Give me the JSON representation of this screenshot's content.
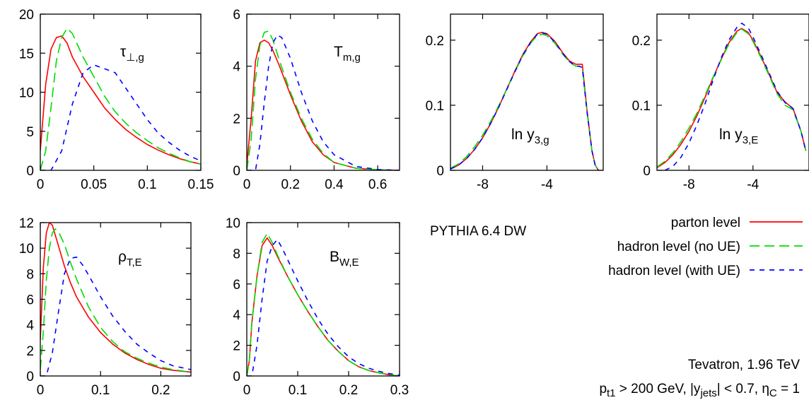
{
  "styles": [
    {
      "color": "#ff0000",
      "dash": ""
    },
    {
      "color": "#00dd00",
      "dash": "14,7"
    },
    {
      "color": "#0000ff",
      "dash": "7,7"
    }
  ],
  "legend": {
    "entries": [
      "parton level",
      "hadron level (no UE)",
      "hadron level (with UE)"
    ]
  },
  "annotations": {
    "generator": "PYTHIA 6.4 DW",
    "collider": "Tevatron, 1.96 TeV",
    "cuts": {
      "p": "p",
      "p_sub": "t1",
      "mid": " > 200 GeV, |y",
      "y_sub": "jets",
      "mid2": "| < 0.7, η",
      "eta_sub": "C",
      "end": " = 1"
    }
  },
  "chart_data": [
    {
      "type": "line",
      "label": {
        "main": "τ",
        "sub": "⊥,g"
      },
      "xlim": [
        0,
        0.15
      ],
      "ylim": [
        0,
        20
      ],
      "xticks": [
        0,
        0.05,
        0.1,
        0.15
      ],
      "xtick_labels": [
        "0",
        "0.05",
        "0.1",
        "0.15"
      ],
      "yticks": [
        0,
        5,
        10,
        15,
        20
      ],
      "ytick_labels": [
        "0",
        "5",
        "10",
        "15",
        "20"
      ],
      "series": [
        {
          "x": [
            0,
            0.005,
            0.01,
            0.015,
            0.02,
            0.025,
            0.03,
            0.04,
            0.05,
            0.06,
            0.07,
            0.08,
            0.09,
            0.1,
            0.11,
            0.12,
            0.13,
            0.14,
            0.15
          ],
          "y": [
            2.5,
            11,
            15.5,
            17,
            17.2,
            16.3,
            14.5,
            12.0,
            10.0,
            8.0,
            6.5,
            5.2,
            4.2,
            3.3,
            2.6,
            2.0,
            1.5,
            1.1,
            0.8
          ]
        },
        {
          "x": [
            0,
            0.005,
            0.01,
            0.015,
            0.02,
            0.025,
            0.03,
            0.04,
            0.05,
            0.06,
            0.07,
            0.08,
            0.09,
            0.1,
            0.11,
            0.12,
            0.13,
            0.14,
            0.15
          ],
          "y": [
            0,
            2.5,
            8,
            14,
            17,
            18.2,
            17.5,
            14.5,
            12.0,
            9.5,
            7.5,
            6.0,
            4.8,
            3.8,
            2.9,
            2.2,
            1.6,
            1.1,
            0.8
          ]
        },
        {
          "x": [
            0,
            0.01,
            0.02,
            0.025,
            0.03,
            0.04,
            0.05,
            0.06,
            0.07,
            0.08,
            0.09,
            0.1,
            0.11,
            0.12,
            0.13,
            0.14,
            0.15
          ],
          "y": [
            0,
            0,
            2.5,
            5.5,
            8.5,
            12.5,
            13.5,
            13.0,
            12.5,
            10.5,
            8.5,
            6.5,
            4.8,
            3.6,
            2.6,
            1.8,
            1.2
          ]
        }
      ]
    },
    {
      "type": "line",
      "label": {
        "main": "T",
        "sub": "m,g"
      },
      "xlim": [
        0,
        0.7
      ],
      "ylim": [
        0,
        6
      ],
      "xticks": [
        0,
        0.2,
        0.4,
        0.6
      ],
      "xtick_labels": [
        "0",
        "0.2",
        "0.4",
        "0.6"
      ],
      "yticks": [
        0,
        2,
        4,
        6
      ],
      "ytick_labels": [
        "0",
        "2",
        "4",
        "6"
      ],
      "series": [
        {
          "x": [
            0,
            0.02,
            0.04,
            0.06,
            0.08,
            0.1,
            0.12,
            0.15,
            0.2,
            0.25,
            0.3,
            0.35,
            0.4,
            0.5,
            0.6,
            0.7
          ],
          "y": [
            0.2,
            2.0,
            4.2,
            4.9,
            5.0,
            4.9,
            4.6,
            4.0,
            2.9,
            1.9,
            1.1,
            0.6,
            0.3,
            0.08,
            0.02,
            0
          ]
        },
        {
          "x": [
            0,
            0.02,
            0.04,
            0.06,
            0.08,
            0.1,
            0.12,
            0.15,
            0.2,
            0.25,
            0.3,
            0.35,
            0.4,
            0.5,
            0.6,
            0.7
          ],
          "y": [
            0,
            1.2,
            3.5,
            4.8,
            5.3,
            5.35,
            5.0,
            4.2,
            3.0,
            2.0,
            1.2,
            0.65,
            0.3,
            0.08,
            0.02,
            0
          ]
        },
        {
          "x": [
            0,
            0.04,
            0.06,
            0.08,
            0.1,
            0.12,
            0.14,
            0.16,
            0.2,
            0.25,
            0.3,
            0.35,
            0.4,
            0.5,
            0.6,
            0.7
          ],
          "y": [
            0,
            0,
            1.0,
            2.6,
            4.0,
            4.9,
            5.2,
            5.1,
            4.3,
            3.0,
            1.9,
            1.1,
            0.6,
            0.15,
            0.03,
            0
          ]
        }
      ]
    },
    {
      "type": "line",
      "label": {
        "main": "ln y",
        "sub": "3,g"
      },
      "xlim": [
        -10,
        -0.5
      ],
      "ylim": [
        0,
        0.24
      ],
      "xticks": [
        -8,
        -4
      ],
      "xtick_labels": [
        "-8",
        "-4"
      ],
      "yticks": [
        0,
        0.1,
        0.2
      ],
      "ytick_labels": [
        "0",
        "0.1",
        "0.2"
      ],
      "series": [
        {
          "x": [
            -10,
            -9.5,
            -9,
            -8.5,
            -8,
            -7.5,
            -7,
            -6.5,
            -6,
            -5.5,
            -5,
            -4.6,
            -4.3,
            -4,
            -3.5,
            -3,
            -2.6,
            -2.2,
            -2.0,
            -1.8,
            -1.5,
            -1.2,
            -1.0,
            -0.8
          ],
          "y": [
            0.002,
            0.008,
            0.018,
            0.032,
            0.05,
            0.072,
            0.097,
            0.125,
            0.152,
            0.178,
            0.198,
            0.21,
            0.212,
            0.21,
            0.198,
            0.18,
            0.168,
            0.163,
            0.163,
            0.163,
            0.09,
            0.03,
            0.008,
            0
          ]
        },
        {
          "x": [
            -10,
            -9.5,
            -9,
            -8.5,
            -8,
            -7.5,
            -7,
            -6.5,
            -6,
            -5.5,
            -5,
            -4.6,
            -4.3,
            -4,
            -3.5,
            -3,
            -2.6,
            -2.2,
            -2.0,
            -1.8,
            -1.5,
            -1.2,
            -1.0,
            -0.8
          ],
          "y": [
            0.003,
            0.01,
            0.021,
            0.036,
            0.054,
            0.075,
            0.099,
            0.125,
            0.151,
            0.176,
            0.196,
            0.207,
            0.209,
            0.207,
            0.195,
            0.178,
            0.166,
            0.16,
            0.16,
            0.158,
            0.088,
            0.03,
            0.008,
            0
          ]
        },
        {
          "x": [
            -10,
            -9.5,
            -9,
            -8.5,
            -8,
            -7.5,
            -7,
            -6.5,
            -6,
            -5.5,
            -5,
            -4.6,
            -4.3,
            -4,
            -3.5,
            -3,
            -2.6,
            -2.2,
            -2.0,
            -1.8,
            -1.5,
            -1.2,
            -1.0,
            -0.8
          ],
          "y": [
            0.002,
            0.008,
            0.018,
            0.032,
            0.05,
            0.072,
            0.097,
            0.124,
            0.151,
            0.177,
            0.197,
            0.209,
            0.211,
            0.209,
            0.197,
            0.179,
            0.167,
            0.16,
            0.16,
            0.158,
            0.088,
            0.03,
            0.008,
            0
          ]
        }
      ]
    },
    {
      "type": "line",
      "label": {
        "main": "ln y",
        "sub": "3,E"
      },
      "xlim": [
        -10,
        -0.5
      ],
      "ylim": [
        0,
        0.24
      ],
      "xticks": [
        -8,
        -4
      ],
      "xtick_labels": [
        "-8",
        "-4"
      ],
      "yticks": [
        0,
        0.1,
        0.2
      ],
      "ytick_labels": [
        "0",
        "0.1",
        "0.2"
      ],
      "series": [
        {
          "x": [
            -10,
            -9.5,
            -9,
            -8.5,
            -8,
            -7.5,
            -7,
            -6.5,
            -6,
            -5.5,
            -5,
            -4.7,
            -4.3,
            -4,
            -3.5,
            -3,
            -2.5,
            -2.0,
            -1.5,
            -1.0,
            -0.7
          ],
          "y": [
            0.004,
            0.012,
            0.024,
            0.04,
            0.06,
            0.084,
            0.112,
            0.142,
            0.17,
            0.196,
            0.214,
            0.218,
            0.212,
            0.2,
            0.175,
            0.148,
            0.12,
            0.105,
            0.095,
            0.06,
            0.03
          ]
        },
        {
          "x": [
            -10,
            -9.5,
            -9,
            -8.5,
            -8,
            -7.5,
            -7,
            -6.5,
            -6,
            -5.5,
            -5,
            -4.7,
            -4.3,
            -4,
            -3.5,
            -3,
            -2.5,
            -2.0,
            -1.5,
            -1.0,
            -0.7
          ],
          "y": [
            0.005,
            0.014,
            0.027,
            0.044,
            0.065,
            0.088,
            0.115,
            0.143,
            0.169,
            0.194,
            0.212,
            0.217,
            0.21,
            0.198,
            0.173,
            0.146,
            0.118,
            0.1,
            0.093,
            0.06,
            0.03
          ]
        },
        {
          "x": [
            -9.5,
            -9,
            -8.5,
            -8,
            -7.5,
            -7,
            -6.5,
            -6,
            -5.5,
            -5,
            -4.7,
            -4.3,
            -4,
            -3.5,
            -3,
            -2.5,
            -2.0,
            -1.5,
            -1.0,
            -0.7
          ],
          "y": [
            0.0,
            0.006,
            0.02,
            0.042,
            0.07,
            0.102,
            0.138,
            0.172,
            0.2,
            0.22,
            0.226,
            0.219,
            0.205,
            0.178,
            0.15,
            0.122,
            0.104,
            0.095,
            0.06,
            0.03
          ]
        }
      ]
    },
    {
      "type": "line",
      "label": {
        "main": "ρ",
        "sub": "T,E"
      },
      "xlim": [
        0,
        0.25
      ],
      "ylim": [
        0,
        12
      ],
      "xticks": [
        0,
        0.1,
        0.2
      ],
      "xtick_labels": [
        "0",
        "0.1",
        "0.2"
      ],
      "yticks": [
        0,
        2,
        4,
        6,
        8,
        10,
        12
      ],
      "ytick_labels": [
        "0",
        "2",
        "4",
        "6",
        "8",
        "10",
        "12"
      ],
      "series": [
        {
          "x": [
            0,
            0.005,
            0.01,
            0.015,
            0.02,
            0.025,
            0.03,
            0.04,
            0.05,
            0.06,
            0.08,
            0.1,
            0.12,
            0.14,
            0.16,
            0.18,
            0.2,
            0.22,
            0.25
          ],
          "y": [
            2.8,
            8.5,
            11.2,
            12.0,
            11.8,
            11.0,
            10.2,
            8.6,
            7.3,
            6.2,
            4.6,
            3.4,
            2.5,
            1.8,
            1.3,
            0.9,
            0.6,
            0.45,
            0.3
          ]
        },
        {
          "x": [
            0,
            0.005,
            0.01,
            0.015,
            0.02,
            0.025,
            0.03,
            0.04,
            0.05,
            0.06,
            0.08,
            0.1,
            0.12,
            0.14,
            0.16,
            0.18,
            0.2,
            0.22,
            0.25
          ],
          "y": [
            0.5,
            3.5,
            7.5,
            10.0,
            11.2,
            11.5,
            11.3,
            10.3,
            8.9,
            7.6,
            5.4,
            3.8,
            2.7,
            1.9,
            1.4,
            1.0,
            0.7,
            0.5,
            0.3
          ]
        },
        {
          "x": [
            0,
            0.01,
            0.02,
            0.03,
            0.04,
            0.05,
            0.06,
            0.07,
            0.08,
            0.1,
            0.12,
            0.14,
            0.16,
            0.18,
            0.2,
            0.22,
            0.25
          ],
          "y": [
            0,
            0,
            1.8,
            5.0,
            8.0,
            9.2,
            9.3,
            8.7,
            7.9,
            6.2,
            4.7,
            3.5,
            2.5,
            1.8,
            1.2,
            0.8,
            0.5
          ]
        }
      ]
    },
    {
      "type": "line",
      "label": {
        "main": "B",
        "sub": "W,E"
      },
      "xlim": [
        0,
        0.3
      ],
      "ylim": [
        0,
        10
      ],
      "xticks": [
        0,
        0.1,
        0.2,
        0.3
      ],
      "xtick_labels": [
        "0",
        "0.1",
        "0.2",
        "0.3"
      ],
      "yticks": [
        0,
        2,
        4,
        6,
        8,
        10
      ],
      "ytick_labels": [
        "0",
        "2",
        "4",
        "6",
        "8",
        "10"
      ],
      "series": [
        {
          "x": [
            0,
            0.005,
            0.01,
            0.02,
            0.03,
            0.04,
            0.05,
            0.06,
            0.08,
            0.1,
            0.12,
            0.14,
            0.16,
            0.18,
            0.2,
            0.22,
            0.24,
            0.26,
            0.28,
            0.3
          ],
          "y": [
            0,
            1.0,
            3.5,
            6.5,
            8.5,
            9.0,
            8.5,
            7.8,
            6.5,
            5.3,
            4.2,
            3.2,
            2.3,
            1.6,
            1.0,
            0.6,
            0.35,
            0.2,
            0.08,
            0
          ]
        },
        {
          "x": [
            0,
            0.005,
            0.01,
            0.02,
            0.03,
            0.04,
            0.05,
            0.06,
            0.08,
            0.1,
            0.12,
            0.14,
            0.16,
            0.18,
            0.2,
            0.22,
            0.24,
            0.26,
            0.28,
            0.3
          ],
          "y": [
            0,
            1.0,
            3.5,
            6.5,
            8.7,
            9.3,
            8.7,
            7.9,
            6.5,
            5.3,
            4.2,
            3.2,
            2.3,
            1.6,
            1.0,
            0.6,
            0.35,
            0.2,
            0.08,
            0
          ]
        },
        {
          "x": [
            0,
            0.01,
            0.02,
            0.03,
            0.04,
            0.05,
            0.06,
            0.07,
            0.08,
            0.1,
            0.12,
            0.14,
            0.16,
            0.18,
            0.2,
            0.22,
            0.24,
            0.26,
            0.28,
            0.3
          ],
          "y": [
            0,
            0,
            2.0,
            5.0,
            7.5,
            8.5,
            8.9,
            8.3,
            7.6,
            6.2,
            4.9,
            3.7,
            2.7,
            1.9,
            1.25,
            0.8,
            0.5,
            0.3,
            0.15,
            0.05
          ]
        }
      ]
    }
  ]
}
